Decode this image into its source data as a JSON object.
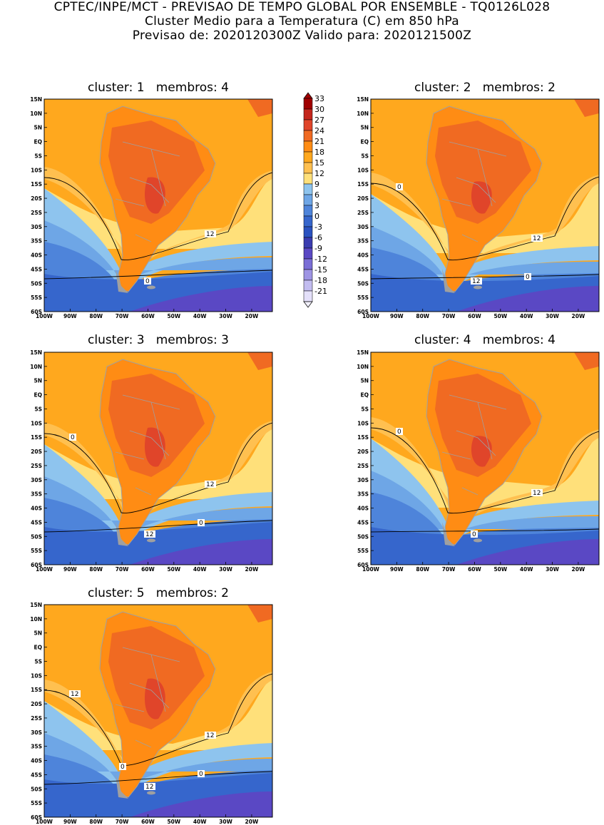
{
  "header": {
    "line1": "CPTEC/INPE/MCT - PREVISAO DE TEMPO GLOBAL POR ENSEMBLE - TQ0126L028",
    "line2": "Cluster Medio para a Temperatura (C) em 850 hPa",
    "line3": "Previsao de: 2020120300Z    Valido para: 2020121500Z"
  },
  "lat_labels": [
    "15N",
    "10N",
    "5N",
    "EQ",
    "5S",
    "10S",
    "15S",
    "20S",
    "25S",
    "30S",
    "35S",
    "40S",
    "45S",
    "50S",
    "55S",
    "60S"
  ],
  "lon_labels": [
    "100W",
    "90W",
    "80W",
    "70W",
    "60W",
    "50W",
    "40W",
    "30W",
    "20W"
  ],
  "colorbar": {
    "labels": [
      "33",
      "30",
      "27",
      "24",
      "21",
      "18",
      "15",
      "12",
      "9",
      "6",
      "3",
      "0",
      "-3",
      "-6",
      "-9",
      "-12",
      "-15",
      "-18",
      "-21"
    ],
    "colors": [
      "#a00000",
      "#c4261c",
      "#e0452a",
      "#f06a22",
      "#ff8c14",
      "#ffa81e",
      "#ffc050",
      "#ffe07a",
      "#8ec4ee",
      "#6ea6e6",
      "#4e84da",
      "#3666cc",
      "#2a52c0",
      "#3a3cb0",
      "#5a48c4",
      "#7a6ed6",
      "#9e94e4",
      "#c2bcf0",
      "#e4e0fa"
    ]
  },
  "colors": {
    "warm_bg": "#ffa81e",
    "hot": "#ff8c14",
    "hotter": "#f06a22",
    "hottest": "#e0452a",
    "mild": "#ffc050",
    "yellow": "#ffe07a",
    "light_blue": "#8ec4ee",
    "mid_blue": "#6ea6e6",
    "blue": "#4e84da",
    "dark_blue": "#3666cc",
    "purple": "#5a48c4",
    "land_outline": "#a0a0a0"
  },
  "panels": [
    {
      "cluster_label": "cluster: 1",
      "membros_label": "membros: 4",
      "contour_labels": [
        "12",
        "0"
      ]
    },
    {
      "cluster_label": "cluster: 2",
      "membros_label": "membros: 2",
      "contour_labels": [
        "12",
        "12",
        "0",
        "0"
      ]
    },
    {
      "cluster_label": "cluster: 3",
      "membros_label": "membros: 3",
      "contour_labels": [
        "12",
        "12",
        "0",
        "0"
      ]
    },
    {
      "cluster_label": "cluster: 4",
      "membros_label": "membros: 4",
      "contour_labels": [
        "12",
        "0",
        "0"
      ]
    },
    {
      "cluster_label": "cluster: 5",
      "membros_label": "membros: 2",
      "contour_labels": [
        "12",
        "12",
        "12",
        "0",
        "0"
      ]
    }
  ]
}
